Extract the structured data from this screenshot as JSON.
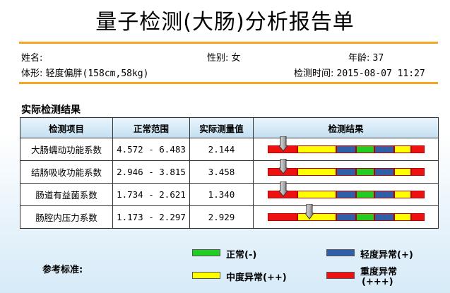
{
  "report": {
    "title": "量子检测(大肠)分析报告单"
  },
  "patient": {
    "name_label": "姓名:",
    "gender_label": "性别:",
    "gender": "女",
    "age_label": "年龄:",
    "age": "37",
    "body_label": "体形:",
    "body": "轻度偏胖(158cm,58kg)",
    "time_label": "检测时间:",
    "time": "2015-08-07 11:27"
  },
  "results": {
    "section_title": "实际检测结果",
    "headers": [
      "检测项目",
      "正常范围",
      "实际测量值",
      "检测结果"
    ],
    "rows": [
      {
        "item": "大肠蠕动功能系数",
        "range": "4.572 - 6.483",
        "value": "2.144",
        "marker_fraction": 0.1
      },
      {
        "item": "结肠吸收功能系数",
        "range": "2.946 - 3.815",
        "value": "3.458",
        "marker_fraction": 0.1
      },
      {
        "item": "肠道有益菌系数",
        "range": "1.734 - 2.621",
        "value": "1.340",
        "marker_fraction": 0.1
      },
      {
        "item": "肠腔内压力系数",
        "range": "1.173 - 2.297",
        "value": "2.929",
        "marker_fraction": 0.27
      }
    ]
  },
  "legend": {
    "title": "参考标准:",
    "normal": "正常(-)",
    "mild": "轻度异常(+)",
    "moderate": "中度异常(++)",
    "severe_line1": "重度异常",
    "severe_line2": "(+++)"
  },
  "colors": {
    "normal": "#22cc22",
    "mild": "#2f5fa8",
    "moderate": "#ffff00",
    "severe": "#ee1111",
    "accent_rule": "#f5a623"
  }
}
